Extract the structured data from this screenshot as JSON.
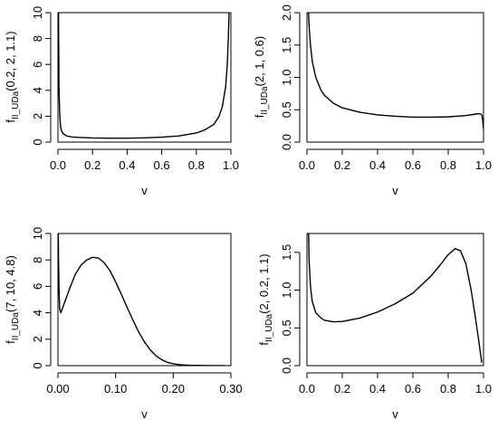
{
  "chart_data": [
    {
      "type": "line",
      "xlabel": "v",
      "ylabel_main": "f",
      "ylabel_sub": "II_UDa",
      "ylabel_args": "(0.2, 2, 1.1)",
      "xlim": [
        0,
        1
      ],
      "ylim": [
        0,
        10
      ],
      "x_ticks": [
        "0.0",
        "0.2",
        "0.4",
        "0.6",
        "0.8",
        "1.0"
      ],
      "y_ticks": [
        "0",
        "2",
        "4",
        "6",
        "8",
        "10"
      ],
      "series": [
        {
          "x": [
            0.003,
            0.006,
            0.01,
            0.015,
            0.02,
            0.03,
            0.05,
            0.08,
            0.12,
            0.2,
            0.3,
            0.4,
            0.5,
            0.6,
            0.7,
            0.8,
            0.85,
            0.9,
            0.93,
            0.95,
            0.97,
            0.98,
            0.985,
            0.99
          ],
          "y": [
            10.2,
            4.2,
            2.2,
            1.2,
            0.9,
            0.65,
            0.48,
            0.4,
            0.36,
            0.32,
            0.3,
            0.3,
            0.33,
            0.38,
            0.48,
            0.7,
            0.95,
            1.35,
            1.95,
            2.7,
            4.3,
            6.2,
            8.0,
            10.2
          ]
        }
      ]
    },
    {
      "type": "line",
      "xlabel": "v",
      "ylabel_main": "f",
      "ylabel_sub": "II_UDa",
      "ylabel_args": "(2, 1, 0.6)",
      "xlim": [
        0,
        1
      ],
      "ylim": [
        0,
        2
      ],
      "x_ticks": [
        "0.0",
        "0.2",
        "0.4",
        "0.6",
        "0.8",
        "1.0"
      ],
      "y_ticks": [
        "0.0",
        "0.5",
        "1.0",
        "1.5",
        "2.0"
      ],
      "series": [
        {
          "x": [
            0.008,
            0.012,
            0.02,
            0.03,
            0.05,
            0.08,
            0.1,
            0.15,
            0.2,
            0.3,
            0.4,
            0.5,
            0.6,
            0.7,
            0.8,
            0.9,
            0.95,
            0.98,
            0.99,
            0.995,
            1.0
          ],
          "y": [
            2.05,
            1.8,
            1.5,
            1.25,
            1.0,
            0.8,
            0.72,
            0.6,
            0.53,
            0.46,
            0.42,
            0.4,
            0.385,
            0.385,
            0.39,
            0.41,
            0.43,
            0.44,
            0.42,
            0.35,
            0.2
          ]
        }
      ]
    },
    {
      "type": "line",
      "xlabel": "v",
      "ylabel_main": "f",
      "ylabel_sub": "II_UDa",
      "ylabel_args": "(7, 10, 4.8)",
      "xlim": [
        0,
        0.3
      ],
      "ylim": [
        0,
        10
      ],
      "x_ticks": [
        "0.00",
        "0.10",
        "0.20",
        "0.30"
      ],
      "y_ticks": [
        "0",
        "2",
        "4",
        "6",
        "8",
        "10"
      ],
      "series": [
        {
          "x": [
            0.0005,
            0.001,
            0.002,
            0.003,
            0.005,
            0.01,
            0.02,
            0.03,
            0.04,
            0.05,
            0.06,
            0.07,
            0.08,
            0.09,
            0.1,
            0.11,
            0.12,
            0.13,
            0.14,
            0.15,
            0.16,
            0.17,
            0.18,
            0.19,
            0.2,
            0.21,
            0.22,
            0.23,
            0.25,
            0.27,
            0.29
          ],
          "y": [
            10.3,
            8.0,
            5.5,
            4.3,
            4.0,
            4.6,
            5.8,
            6.9,
            7.6,
            8.0,
            8.2,
            8.15,
            7.8,
            7.2,
            6.35,
            5.4,
            4.4,
            3.45,
            2.55,
            1.8,
            1.2,
            0.75,
            0.45,
            0.25,
            0.14,
            0.08,
            0.05,
            0.03,
            0.015,
            0.005,
            0.0
          ]
        }
      ]
    },
    {
      "type": "line",
      "xlabel": "v",
      "ylabel_main": "f",
      "ylabel_sub": "II_UDa",
      "ylabel_args": "(2, 0.2, 1.1)",
      "xlim": [
        0,
        1
      ],
      "ylim": [
        0,
        1.75
      ],
      "x_ticks": [
        "0.0",
        "0.2",
        "0.4",
        "0.6",
        "0.8",
        "1.0"
      ],
      "y_ticks": [
        "0.0",
        "0.5",
        "1.0",
        "1.5"
      ],
      "series": [
        {
          "x": [
            0.008,
            0.012,
            0.02,
            0.03,
            0.05,
            0.08,
            0.1,
            0.15,
            0.2,
            0.3,
            0.4,
            0.5,
            0.6,
            0.7,
            0.75,
            0.8,
            0.84,
            0.87,
            0.9,
            0.93,
            0.95,
            0.97,
            0.99
          ],
          "y": [
            1.9,
            1.4,
            1.05,
            0.85,
            0.7,
            0.63,
            0.6,
            0.58,
            0.585,
            0.63,
            0.71,
            0.82,
            0.96,
            1.18,
            1.32,
            1.47,
            1.55,
            1.52,
            1.35,
            1.0,
            0.7,
            0.38,
            0.04
          ]
        }
      ]
    }
  ]
}
